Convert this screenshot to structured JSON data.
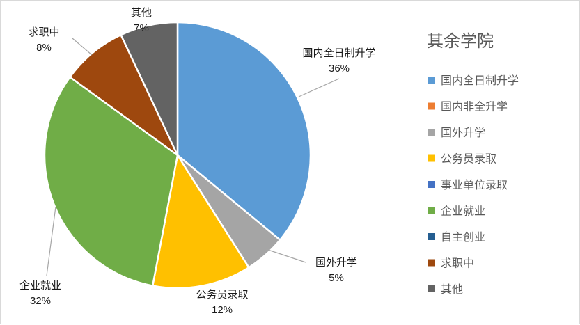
{
  "chart_data": {
    "type": "pie",
    "legend_title": "其余学院",
    "legend_position": "right",
    "legend": [
      {
        "name": "国内全日制升学",
        "color": "#5b9bd5"
      },
      {
        "name": "国内非全升学",
        "color": "#ed7d31"
      },
      {
        "name": "国外升学",
        "color": "#a5a5a5"
      },
      {
        "name": "公务员录取",
        "color": "#ffc000"
      },
      {
        "name": "事业单位录取",
        "color": "#4472c4"
      },
      {
        "name": "企业就业",
        "color": "#70ad47"
      },
      {
        "name": "自主创业",
        "color": "#255e91"
      },
      {
        "name": "求职中",
        "color": "#9e480e"
      },
      {
        "name": "其他",
        "color": "#636363"
      }
    ],
    "slices": [
      {
        "name": "国内全日制升学",
        "value": 36,
        "label": "36%",
        "color": "#5b9bd5"
      },
      {
        "name": "国外升学",
        "value": 5,
        "label": "5%",
        "color": "#a5a5a5"
      },
      {
        "name": "公务员录取",
        "value": 12,
        "label": "12%",
        "color": "#ffc000"
      },
      {
        "name": "企业就业",
        "value": 32,
        "label": "32%",
        "color": "#70ad47"
      },
      {
        "name": "求职中",
        "value": 8,
        "label": "8%",
        "color": "#9e480e"
      },
      {
        "name": "其他",
        "value": 7,
        "label": "7%",
        "color": "#636363"
      }
    ]
  }
}
